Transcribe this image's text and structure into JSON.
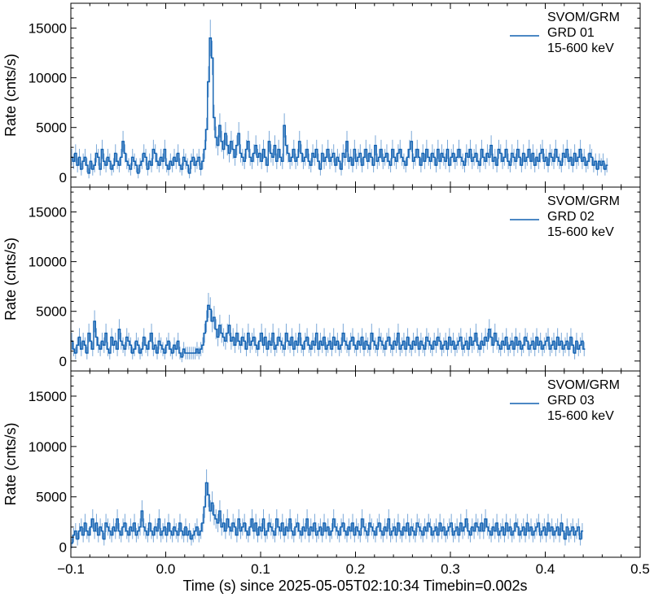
{
  "figure": {
    "xlabel": "Time (s) since 2025-05-05T02:10:34 Timebin=0.002s",
    "ylabel": "Rate (cnts/s)"
  },
  "chart_data": [
    {
      "type": "line",
      "step": true,
      "ylabel": "Rate (cnts/s)",
      "xlim": [
        -0.1,
        0.5
      ],
      "ylim": [
        -1000,
        17500
      ],
      "x_ticks": [
        -0.1,
        0.0,
        0.1,
        0.2,
        0.3,
        0.4,
        0.5
      ],
      "y_ticks": [
        0,
        5000,
        10000,
        15000
      ],
      "legend": {
        "placement": "top-right",
        "lines": [
          "SVOM/GRM",
          "GRD 01",
          "15-600 keV"
        ]
      },
      "series": [
        {
          "color": "#1060b0",
          "error_color": "#7aa8d8",
          "timebin": 0.002,
          "x_start": -0.1,
          "values": [
            2000,
            1600,
            2400,
            1200,
            2000,
            800,
            1600,
            2000,
            1200,
            400,
            1600,
            800,
            1200,
            2400,
            2000,
            800,
            2800,
            1600,
            1200,
            2000,
            1600,
            800,
            1200,
            2400,
            1600,
            1200,
            2000,
            3600,
            2400,
            1600,
            1200,
            800,
            2000,
            1600,
            1200,
            400,
            1200,
            1600,
            2400,
            2000,
            800,
            1600,
            1200,
            2800,
            2400,
            1600,
            1200,
            2000,
            1600,
            2800,
            1200,
            800,
            1600,
            1200,
            2000,
            1600,
            2400,
            1200,
            800,
            2000,
            1600,
            1200,
            400,
            1600,
            2000,
            1200,
            1600,
            2000,
            800,
            1600,
            2800,
            4800,
            9600,
            14000,
            12000,
            6000,
            4000,
            3200,
            5200,
            3600,
            2800,
            4400,
            3200,
            2400,
            3600,
            2800,
            2000,
            3200,
            4400,
            2400,
            2000,
            1600,
            2800,
            3600,
            2000,
            1600,
            2400,
            3200,
            2000,
            2400,
            1600,
            2800,
            2000,
            1200,
            3600,
            2400,
            2000,
            3200,
            1600,
            2800,
            2000,
            1600,
            5200,
            3200,
            2400,
            1600,
            2000,
            2800,
            1600,
            2000,
            3600,
            2400,
            1600,
            2000,
            2800,
            1600,
            1200,
            2400,
            2000,
            2800,
            1600,
            800,
            2400,
            1600,
            2000,
            2800,
            1600,
            2000,
            2400,
            1200,
            2000,
            1600,
            800,
            2400,
            2000,
            3600,
            1600,
            2000,
            1200,
            2800,
            1600,
            2000,
            2400,
            1200,
            2000,
            2800,
            1600,
            2400,
            2000,
            1200,
            3200,
            1600,
            2000,
            2800,
            1600,
            2000,
            2400,
            1600,
            1200,
            2800,
            2000,
            1600,
            2400,
            2800,
            2000,
            1600,
            1200,
            2000,
            2800,
            3600,
            1600,
            2000,
            2800,
            2000,
            1200,
            2400,
            1600,
            2800,
            2000,
            1600,
            2400,
            2000,
            1200,
            2800,
            1600,
            2400,
            2000,
            1600,
            2800,
            1200,
            2000,
            2400,
            1600,
            2000,
            2800,
            2000,
            1600,
            1200,
            2400,
            2000,
            2800,
            1600,
            2000,
            2400,
            1600,
            1200,
            2800,
            2000,
            1600,
            2400,
            2000,
            3200,
            1600,
            2000,
            1200,
            2800,
            2400,
            1600,
            2000,
            2800,
            1600,
            1200,
            2400,
            2000,
            1600,
            2800,
            2000,
            1200,
            2400,
            1600,
            2000,
            2800,
            1600,
            2400,
            1200,
            2000,
            1600,
            2400,
            2800,
            1600,
            2000,
            1200,
            2400,
            2000,
            1600,
            2800,
            2000,
            1600,
            1200,
            2400,
            2000,
            2800,
            1600,
            2000,
            1200,
            2400,
            1600,
            2000,
            2800,
            1600,
            2000,
            1200,
            1600,
            2400,
            2000,
            1200,
            1600,
            800,
            1600,
            1200,
            1600,
            800,
            1200
          ]
        }
      ]
    },
    {
      "type": "line",
      "step": true,
      "ylabel": "Rate (cnts/s)",
      "xlim": [
        -0.1,
        0.5
      ],
      "ylim": [
        -1000,
        17500
      ],
      "x_ticks": [
        -0.1,
        0.0,
        0.1,
        0.2,
        0.3,
        0.4,
        0.5
      ],
      "y_ticks": [
        0,
        5000,
        10000,
        15000
      ],
      "legend": {
        "placement": "top-right",
        "lines": [
          "SVOM/GRM",
          "GRD 02",
          "15-600 keV"
        ]
      },
      "series": [
        {
          "color": "#1060b0",
          "error_color": "#7aa8d8",
          "timebin": 0.002,
          "x_start": -0.1,
          "values": [
            2000,
            1200,
            800,
            1600,
            2400,
            1200,
            2000,
            1600,
            800,
            2800,
            2000,
            1200,
            4000,
            2400,
            1600,
            1200,
            2000,
            1600,
            2800,
            1200,
            800,
            2400,
            1600,
            2000,
            1200,
            3200,
            2000,
            1600,
            1200,
            2400,
            2000,
            1600,
            800,
            1200,
            2000,
            1600,
            800,
            1200,
            2400,
            1600,
            1200,
            2000,
            2800,
            1200,
            1600,
            800,
            2000,
            1600,
            1200,
            800,
            1600,
            2000,
            1200,
            800,
            1600,
            1200,
            2000,
            800,
            400,
            1200,
            800,
            800,
            800,
            800,
            800,
            800,
            1200,
            800,
            1200,
            1600,
            2800,
            4000,
            5600,
            5200,
            4000,
            4400,
            3200,
            2400,
            3600,
            2800,
            2400,
            2000,
            2800,
            3600,
            2000,
            2400,
            1600,
            2800,
            2000,
            1600,
            2400,
            2000,
            1200,
            2800,
            1600,
            2000,
            2400,
            1600,
            1200,
            2000,
            2800,
            1600,
            2400,
            1200,
            2000,
            1600,
            2800,
            1200,
            1600,
            2400,
            2000,
            1600,
            1200,
            2800,
            2000,
            1600,
            2400,
            1200,
            2000,
            1600,
            2800,
            1600,
            1200,
            2000,
            2400,
            1600,
            1200,
            2000,
            1600,
            2800,
            1200,
            2000,
            1600,
            2400,
            1200,
            1600,
            2000,
            1200,
            2400,
            1600,
            2000,
            1200,
            1600,
            2800,
            2000,
            1600,
            1200,
            2000,
            2400,
            1600,
            1200,
            2000,
            1600,
            2400,
            1200,
            2000,
            1600,
            1200,
            2800,
            2000,
            1600,
            1200,
            2400,
            2000,
            1600,
            1200,
            2000,
            2400,
            1600,
            1200,
            2000,
            1600,
            2800,
            1200,
            1600,
            2000,
            1200,
            2400,
            1600,
            1200,
            2000,
            1600,
            2400,
            1200,
            2000,
            1600,
            1200,
            2400,
            2000,
            1600,
            1200,
            2000,
            1600,
            2400,
            2000,
            1200,
            1600,
            2000,
            1200,
            2400,
            1600,
            2000,
            1200,
            1600,
            2000,
            2400,
            1200,
            1600,
            2000,
            1200,
            2400,
            1600,
            2000,
            2800,
            1600,
            1200,
            2000,
            1600,
            2400,
            2000,
            3200,
            2400,
            1600,
            2800,
            2000,
            1600,
            1200,
            2000,
            1600,
            2400,
            1200,
            1600,
            2000,
            1200,
            2400,
            1600,
            2000,
            1200,
            1600,
            2400,
            2000,
            1200,
            1600,
            2000,
            1200,
            2400,
            1600,
            2000,
            1200,
            1600,
            2000,
            2400,
            1200,
            1600,
            2000,
            1200,
            2400,
            1600,
            2000,
            1200,
            1600,
            2000,
            1200,
            2400,
            1600,
            800,
            2000,
            1200,
            1600,
            2000,
            1200
          ]
        }
      ]
    },
    {
      "type": "line",
      "step": true,
      "ylabel": "Rate (cnts/s)",
      "xlabel": "Time (s) since 2025-05-05T02:10:34 Timebin=0.002s",
      "xlim": [
        -0.1,
        0.5
      ],
      "ylim": [
        -1000,
        17500
      ],
      "x_ticks": [
        -0.1,
        0.0,
        0.1,
        0.2,
        0.3,
        0.4,
        0.5
      ],
      "y_ticks": [
        0,
        5000,
        10000,
        15000
      ],
      "legend": {
        "placement": "top-right",
        "lines": [
          "SVOM/GRM",
          "GRD 03",
          "15-600 keV"
        ]
      },
      "series": [
        {
          "color": "#1060b0",
          "error_color": "#7aa8d8",
          "timebin": 0.002,
          "x_start": -0.1,
          "values": [
            400,
            1200,
            1600,
            800,
            1600,
            2000,
            1200,
            2400,
            1600,
            1200,
            2000,
            2800,
            1600,
            2400,
            1200,
            2000,
            1600,
            800,
            2400,
            2000,
            1600,
            1200,
            2000,
            1600,
            2800,
            1600,
            1200,
            2000,
            2400,
            1600,
            1200,
            2000,
            1600,
            2400,
            1200,
            1600,
            2000,
            3600,
            2000,
            1600,
            1200,
            2400,
            1600,
            1200,
            2000,
            1600,
            2800,
            1200,
            1600,
            2000,
            1200,
            2400,
            1600,
            1200,
            2000,
            1600,
            1200,
            2400,
            1600,
            1200,
            2000,
            1200,
            1600,
            800,
            1200,
            1600,
            2000,
            1200,
            1600,
            2400,
            4000,
            6400,
            5200,
            3600,
            4400,
            3200,
            2800,
            2400,
            3600,
            2000,
            2400,
            1600,
            2800,
            2000,
            1600,
            2400,
            2000,
            1200,
            2800,
            1600,
            2000,
            2400,
            1600,
            1200,
            2000,
            2800,
            1600,
            2400,
            1200,
            2000,
            1600,
            2800,
            1200,
            1600,
            2400,
            2000,
            1600,
            1200,
            2800,
            2000,
            1600,
            2400,
            1200,
            2000,
            1600,
            2800,
            1600,
            1200,
            2000,
            2400,
            1600,
            1200,
            2000,
            1600,
            2800,
            1200,
            2000,
            1600,
            2400,
            1200,
            1600,
            2000,
            1200,
            2400,
            1600,
            2000,
            1200,
            1600,
            2800,
            2000,
            1600,
            1200,
            2000,
            2400,
            1600,
            1200,
            2000,
            1600,
            2400,
            1200,
            2000,
            1600,
            1200,
            2800,
            2000,
            1600,
            1200,
            2400,
            2000,
            1600,
            1200,
            2000,
            2400,
            1600,
            1200,
            2000,
            1600,
            2800,
            1200,
            1600,
            2000,
            1200,
            2400,
            1600,
            1200,
            2000,
            1600,
            2400,
            1200,
            2000,
            1600,
            1200,
            2400,
            2000,
            1600,
            1200,
            2000,
            1600,
            2400,
            2000,
            1200,
            1600,
            2000,
            1200,
            2400,
            1600,
            2000,
            1200,
            1600,
            2000,
            2400,
            1200,
            1600,
            2000,
            1200,
            2400,
            1600,
            2000,
            2800,
            1600,
            1200,
            2000,
            1600,
            2400,
            2000,
            1600,
            2400,
            1600,
            2800,
            2000,
            1600,
            1200,
            2000,
            1600,
            2400,
            1200,
            1600,
            2000,
            1200,
            2400,
            1600,
            2000,
            1200,
            1600,
            2400,
            2000,
            1200,
            1600,
            2000,
            1200,
            2400,
            1600,
            2000,
            1200,
            1600,
            2000,
            2400,
            1200,
            1600,
            2000,
            1200,
            2400,
            1600,
            2000,
            1200,
            1600,
            2000,
            1200,
            2400,
            1600,
            800,
            2000,
            1200,
            1600,
            2000,
            1200,
            1600,
            2000,
            800,
            1600
          ]
        }
      ]
    }
  ]
}
